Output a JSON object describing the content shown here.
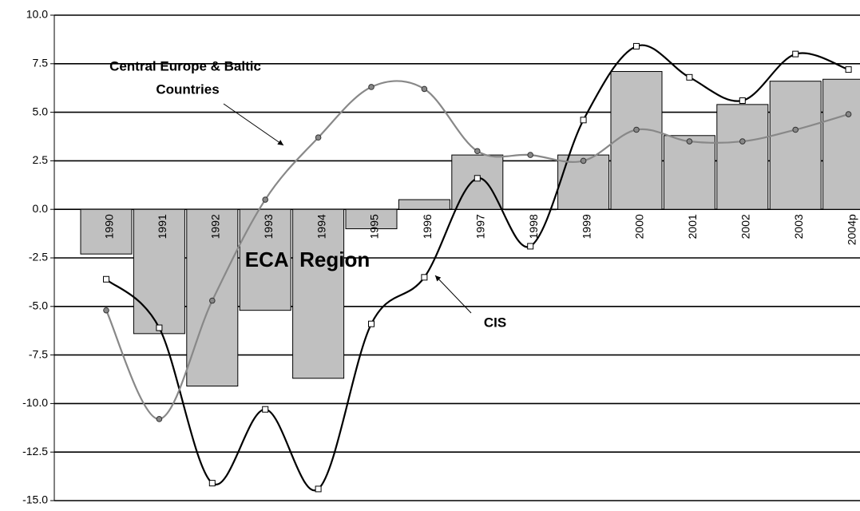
{
  "chart_data": {
    "type": "bar-line",
    "categories": [
      "1990",
      "1991",
      "1992",
      "1993",
      "1994",
      "1995",
      "1996",
      "1997",
      "1998",
      "1999",
      "2000",
      "2001",
      "2002",
      "2003",
      "2004p"
    ],
    "series": [
      {
        "name": "ECA  Region",
        "kind": "bar",
        "color": "#c0c0c0",
        "values": [
          -2.3,
          -6.4,
          -9.1,
          -5.2,
          -8.7,
          -1.0,
          0.5,
          2.8,
          0,
          2.8,
          7.1,
          3.8,
          5.4,
          6.6,
          6.7
        ]
      },
      {
        "name": "CIS",
        "kind": "line",
        "color": "#000000",
        "marker": "square",
        "values": [
          -3.6,
          -6.1,
          -14.1,
          -10.3,
          -14.4,
          -5.9,
          -3.5,
          1.6,
          -1.9,
          4.6,
          8.4,
          6.8,
          5.6,
          8.0,
          7.2
        ]
      },
      {
        "kind": "line",
        "color": "#888888",
        "marker": "circle",
        "values": [
          -5.2,
          -10.8,
          -4.7,
          0.5,
          3.7,
          6.3,
          6.2,
          3.0,
          2.8,
          2.5,
          4.1,
          3.5,
          3.5,
          4.1,
          4.9
        ]
      }
    ],
    "annotations": [
      "Central Europe & Baltic",
      "Countries"
    ],
    "ylim": [
      -15,
      10
    ],
    "yticks": [
      {
        "value": 10,
        "label": "10.0"
      },
      7.5,
      {
        "value": 5,
        "label": "5.0"
      },
      2.5,
      {
        "value": 0,
        "label": "0.0"
      },
      -2.5,
      {
        "value": -5,
        "label": "-5.0"
      },
      -7.5,
      {
        "value": -10,
        "label": "-10.0"
      },
      -12.5,
      {
        "value": -15,
        "label": "-15.0"
      }
    ],
    "grid": true
  }
}
